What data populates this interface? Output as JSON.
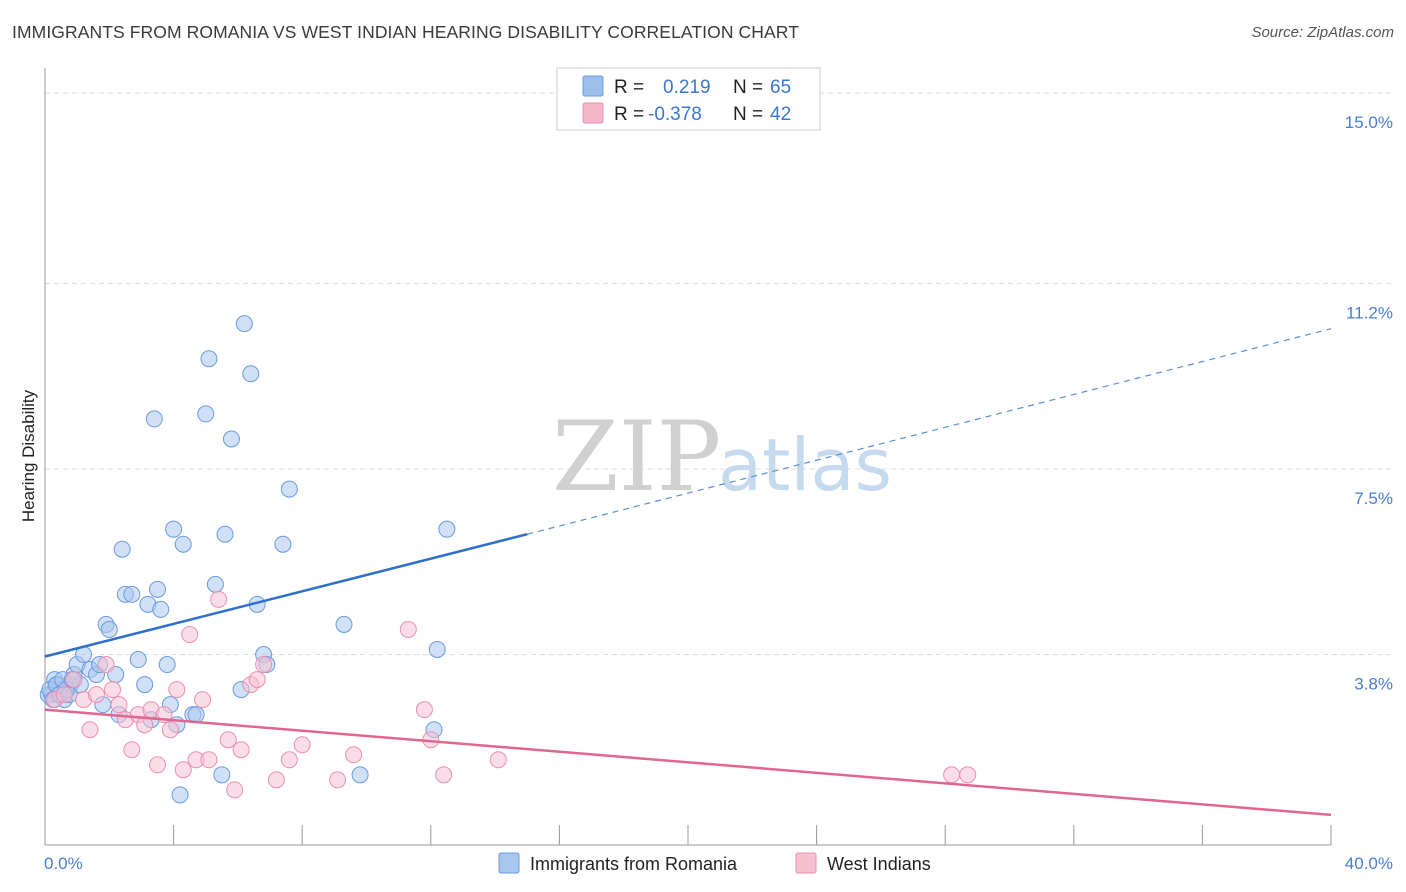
{
  "header": {
    "title": "IMMIGRANTS FROM ROMANIA VS WEST INDIAN HEARING DISABILITY CORRELATION CHART",
    "source": "Source: ZipAtlas.com"
  },
  "watermark": {
    "zip": "ZIP",
    "atlas": "atlas"
  },
  "legend": {
    "r_label": "R =",
    "n_label": "N =",
    "rows": [
      {
        "r": "0.219",
        "n": "65",
        "color": "#9dbdea"
      },
      {
        "r": "-0.378",
        "n": "42",
        "color": "#f4b6c8"
      }
    ]
  },
  "chart_data": {
    "type": "scatter",
    "title": "IMMIGRANTS FROM ROMANIA VS WEST INDIAN HEARING DISABILITY CORRELATION CHART",
    "ylabel": "Hearing Disability",
    "xlabel": "",
    "xlim": [
      0,
      40
    ],
    "ylim": [
      0,
      15.5
    ],
    "x_tick_labels": [
      "0.0%",
      "40.0%"
    ],
    "y_ticks": [
      {
        "value": 3.8,
        "label": "3.8%"
      },
      {
        "value": 7.5,
        "label": "7.5%"
      },
      {
        "value": 11.2,
        "label": "11.2%"
      },
      {
        "value": 15.0,
        "label": "15.0%"
      }
    ],
    "grid": "horizontal dashed",
    "legend_position": "top-center",
    "series": [
      {
        "name": "Immigrants from Romania",
        "color": "#6a9be0",
        "fill": "#a9c6ee",
        "trend": {
          "x0": 0,
          "y0": 3.76,
          "x1": 15,
          "y1": 6.2,
          "x_end": 40,
          "y_end": 10.3
        },
        "points": [
          [
            0.2,
            3.0
          ],
          [
            0.3,
            3.3
          ],
          [
            0.4,
            3.2
          ],
          [
            0.5,
            3.1
          ],
          [
            0.6,
            2.9
          ],
          [
            0.7,
            3.1
          ],
          [
            0.8,
            3.2
          ],
          [
            0.9,
            3.4
          ],
          [
            1.0,
            3.6
          ],
          [
            1.1,
            3.2
          ],
          [
            1.2,
            3.8
          ],
          [
            1.4,
            3.5
          ],
          [
            1.6,
            3.4
          ],
          [
            1.7,
            3.6
          ],
          [
            1.8,
            2.8
          ],
          [
            1.9,
            4.4
          ],
          [
            2.0,
            4.3
          ],
          [
            2.2,
            3.4
          ],
          [
            2.3,
            2.6
          ],
          [
            2.4,
            5.9
          ],
          [
            2.5,
            5.0
          ],
          [
            2.7,
            5.0
          ],
          [
            2.9,
            3.7
          ],
          [
            3.1,
            3.2
          ],
          [
            3.2,
            4.8
          ],
          [
            3.3,
            2.5
          ],
          [
            3.5,
            5.1
          ],
          [
            3.6,
            4.7
          ],
          [
            3.8,
            3.6
          ],
          [
            3.9,
            2.8
          ],
          [
            4.0,
            6.3
          ],
          [
            4.1,
            2.4
          ],
          [
            4.3,
            6.0
          ],
          [
            4.6,
            2.6
          ],
          [
            4.7,
            2.6
          ],
          [
            3.4,
            8.5
          ],
          [
            5.0,
            8.6
          ],
          [
            5.1,
            9.7
          ],
          [
            5.3,
            5.2
          ],
          [
            5.6,
            6.2
          ],
          [
            5.8,
            8.1
          ],
          [
            6.1,
            3.1
          ],
          [
            6.2,
            10.4
          ],
          [
            6.4,
            9.4
          ],
          [
            6.6,
            4.8
          ],
          [
            6.8,
            3.8
          ],
          [
            6.9,
            3.6
          ],
          [
            7.4,
            6.0
          ],
          [
            7.6,
            7.1
          ],
          [
            9.3,
            4.4
          ],
          [
            9.8,
            1.4
          ],
          [
            4.2,
            1.0
          ],
          [
            5.5,
            1.4
          ],
          [
            12.2,
            3.9
          ],
          [
            12.1,
            2.3
          ],
          [
            12.5,
            6.3
          ],
          [
            0.1,
            3.0
          ],
          [
            0.15,
            3.1
          ],
          [
            0.25,
            2.9
          ],
          [
            0.35,
            3.2
          ],
          [
            0.45,
            3.0
          ],
          [
            0.55,
            3.3
          ],
          [
            0.65,
            3.1
          ],
          [
            0.75,
            3.0
          ],
          [
            0.85,
            3.3
          ]
        ]
      },
      {
        "name": "West Indians",
        "color": "#ec8fae",
        "fill": "#f6c1d1",
        "trend": {
          "x0": 0,
          "y0": 2.7,
          "x1": 40,
          "y1": 0.6
        },
        "points": [
          [
            0.3,
            2.9
          ],
          [
            0.6,
            3.0
          ],
          [
            0.9,
            3.3
          ],
          [
            1.2,
            2.9
          ],
          [
            1.4,
            2.3
          ],
          [
            1.6,
            3.0
          ],
          [
            1.9,
            3.6
          ],
          [
            2.1,
            3.1
          ],
          [
            2.3,
            2.8
          ],
          [
            2.5,
            2.5
          ],
          [
            2.7,
            1.9
          ],
          [
            2.9,
            2.6
          ],
          [
            3.1,
            2.4
          ],
          [
            3.3,
            2.7
          ],
          [
            3.5,
            1.6
          ],
          [
            3.7,
            2.6
          ],
          [
            3.9,
            2.3
          ],
          [
            4.1,
            3.1
          ],
          [
            4.3,
            1.5
          ],
          [
            4.5,
            4.2
          ],
          [
            4.7,
            1.7
          ],
          [
            4.9,
            2.9
          ],
          [
            5.1,
            1.7
          ],
          [
            5.4,
            4.9
          ],
          [
            5.7,
            2.1
          ],
          [
            5.9,
            1.1
          ],
          [
            6.1,
            1.9
          ],
          [
            6.4,
            3.2
          ],
          [
            6.6,
            3.3
          ],
          [
            6.8,
            3.6
          ],
          [
            7.2,
            1.3
          ],
          [
            7.6,
            1.7
          ],
          [
            8.0,
            2.0
          ],
          [
            9.1,
            1.3
          ],
          [
            9.6,
            1.8
          ],
          [
            11.3,
            4.3
          ],
          [
            11.8,
            2.7
          ],
          [
            12.0,
            2.1
          ],
          [
            12.4,
            1.4
          ],
          [
            14.1,
            1.7
          ],
          [
            28.2,
            1.4
          ],
          [
            28.7,
            1.4
          ]
        ]
      }
    ]
  },
  "bottom_legend": [
    {
      "label": "Immigrants from Romania",
      "color": "#a9c6ee"
    },
    {
      "label": "West Indians",
      "color": "#f6c1d1"
    }
  ]
}
